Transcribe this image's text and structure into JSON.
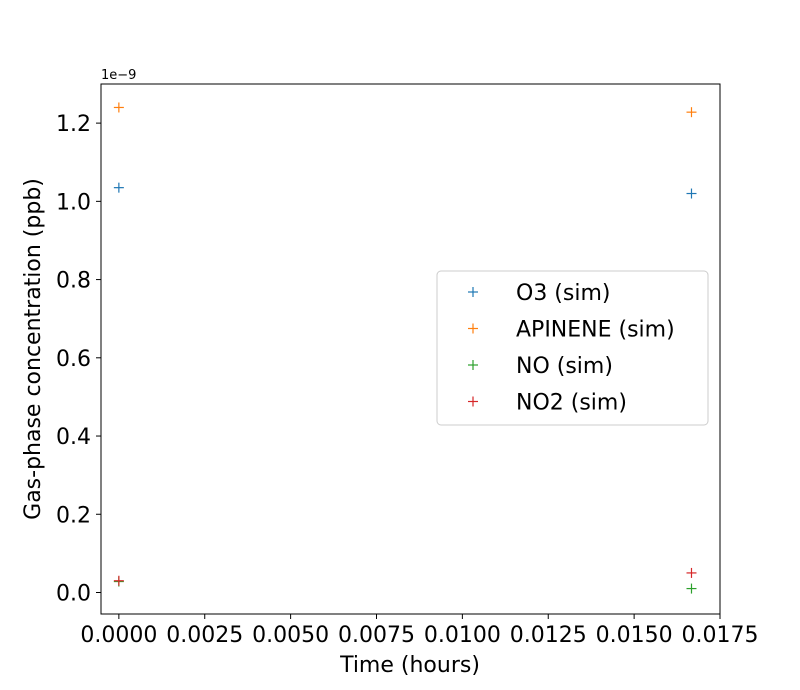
{
  "chart_data": {
    "type": "scatter",
    "title": "",
    "xlabel": "Time (hours)",
    "ylabel": "Gas-phase concentration (ppb)",
    "y_offset_label": "1e−9",
    "xlim": [
      -0.00052,
      0.0175
    ],
    "ylim": [
      -5.5e-11,
      1.3e-09
    ],
    "x_ticks": [
      0.0,
      0.0025,
      0.005,
      0.0075,
      0.01,
      0.0125,
      0.015,
      0.0175
    ],
    "x_tick_labels": [
      "0.0000",
      "0.0025",
      "0.0050",
      "0.0075",
      "0.0100",
      "0.0125",
      "0.0150",
      "0.0175"
    ],
    "y_ticks": [
      0.0,
      0.2,
      0.4,
      0.6,
      0.8,
      1.0,
      1.2
    ],
    "y_tick_labels": [
      "0.0",
      "0.2",
      "0.4",
      "0.6",
      "0.8",
      "1.0",
      "1.2"
    ],
    "y_scale": 1e-09,
    "marker": "+",
    "grid": false,
    "legend_position": "center-right",
    "series": [
      {
        "name": "O3 (sim)",
        "color": "#1f77b4",
        "x": [
          0.0,
          0.01667
        ],
        "y": [
          1.035e-09,
          1.02e-09
        ]
      },
      {
        "name": "APINENE (sim)",
        "color": "#ff7f0e",
        "x": [
          0.0,
          0.01667
        ],
        "y": [
          1.24e-09,
          1.228e-09
        ]
      },
      {
        "name": "NO (sim)",
        "color": "#2ca02c",
        "x": [
          0.0,
          0.01667
        ],
        "y": [
          2.8e-11,
          1e-11
        ]
      },
      {
        "name": "NO2 (sim)",
        "color": "#d62728",
        "x": [
          0.0,
          0.01667
        ],
        "y": [
          3e-11,
          5e-11
        ]
      }
    ]
  }
}
